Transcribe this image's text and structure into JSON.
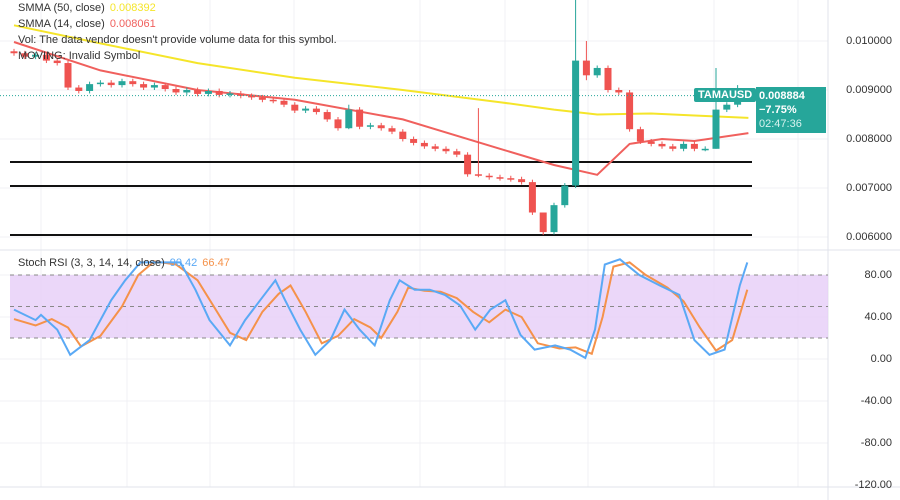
{
  "legend": {
    "smma50_label": "SMMA (50, close)",
    "smma50_value": "0.008392",
    "smma14_label": "SMMA (14, close)",
    "smma14_value": "0.008061",
    "vol_text": "Vol: The data vendor doesn't provide volume data for this symbol.",
    "moving_text": "MOVING: Invalid Symbol",
    "stoch_label": "Stoch RSI (3, 3, 14, 14, close)",
    "stoch_k_value": "90.42",
    "stoch_d_value": "66.47"
  },
  "symbol_tag": "TAMAUSD",
  "last_price": {
    "price": "0.008884",
    "change": "−7.75%",
    "countdown": "02:47:36",
    "value": 0.008884
  },
  "price_axis": [
    "0.010000",
    "0.009000",
    "0.008000",
    "0.007000",
    "0.006000"
  ],
  "stoch_axis": [
    "80.00",
    "40.00",
    "0.00",
    "-40.00",
    "-80.00",
    "-120.00"
  ],
  "colors": {
    "up": "#26a69a",
    "down": "#ef5350",
    "smma50": "#f5e52a",
    "smma14": "#f0605d",
    "stoch_k": "#5aa9f5",
    "stoch_d": "#f5924a",
    "band": "#e6cdf7"
  },
  "chart_data": [
    {
      "type": "candlestick",
      "price_range": [
        0.0058,
        0.0108
      ],
      "close": [
        0.00975,
        0.00968,
        0.00972,
        0.0096,
        0.00955,
        0.00905,
        0.00898,
        0.00912,
        0.00915,
        0.0091,
        0.00918,
        0.00912,
        0.00905,
        0.0091,
        0.00902,
        0.00895,
        0.009,
        0.00892,
        0.00898,
        0.0089,
        0.00893,
        0.00888,
        0.00885,
        0.0088,
        0.00878,
        0.0087,
        0.00858,
        0.00862,
        0.00855,
        0.0084,
        0.00822,
        0.0086,
        0.00825,
        0.00828,
        0.00822,
        0.00815,
        0.008,
        0.00792,
        0.00785,
        0.0078,
        0.00775,
        0.00768,
        0.00728,
        0.00725,
        0.00722,
        0.0072,
        0.00718,
        0.00712,
        0.0065,
        0.0061,
        0.00665,
        0.00705,
        0.0096,
        0.0093,
        0.00945,
        0.009,
        0.00895,
        0.0082,
        0.00795,
        0.0079,
        0.00785,
        0.0078,
        0.0079,
        0.0078,
        0.0078,
        0.0086,
        0.0087,
        0.00888
      ],
      "wicks": {
        "31": [
          0.0087,
          0.0082
        ],
        "43": [
          0.00863,
          0.00722
        ],
        "49": [
          0.0065,
          0.00604
        ],
        "52": [
          0.01085,
          0.007
        ],
        "53": [
          0.01,
          0.0092
        ],
        "65": [
          0.00945,
          0.0078
        ],
        "67": [
          0.0091,
          0.00865
        ]
      },
      "horizontal_levels": [
        0.00753,
        0.00704,
        0.00604
      ],
      "smma50": [
        [
          0,
          0.01032
        ],
        [
          8,
          0.00995
        ],
        [
          17,
          0.00955
        ],
        [
          26,
          0.00925
        ],
        [
          36,
          0.009
        ],
        [
          45,
          0.00875
        ],
        [
          50,
          0.0086
        ],
        [
          54,
          0.0085
        ],
        [
          59,
          0.00852
        ],
        [
          63,
          0.00848
        ],
        [
          68,
          0.00843
        ]
      ],
      "smma14": [
        [
          0,
          0.00998
        ],
        [
          8,
          0.0094
        ],
        [
          17,
          0.009
        ],
        [
          26,
          0.0088
        ],
        [
          36,
          0.0084
        ],
        [
          45,
          0.0078
        ],
        [
          50,
          0.00747
        ],
        [
          54,
          0.00727
        ],
        [
          57,
          0.0079
        ],
        [
          60,
          0.008
        ],
        [
          63,
          0.00796
        ],
        [
          68,
          0.00812
        ]
      ]
    },
    {
      "type": "line",
      "yrange": [
        -120,
        100
      ],
      "band": [
        20,
        80
      ],
      "k": [
        [
          0,
          47
        ],
        [
          2,
          37
        ],
        [
          2.5,
          42
        ],
        [
          4,
          28
        ],
        [
          5.2,
          4
        ],
        [
          7,
          18
        ],
        [
          9,
          56
        ],
        [
          10.3,
          75
        ],
        [
          11.7,
          92
        ],
        [
          13.5,
          92
        ],
        [
          15.4,
          92
        ],
        [
          16.8,
          66
        ],
        [
          18.1,
          37
        ],
        [
          20,
          13
        ],
        [
          21.4,
          37
        ],
        [
          22.8,
          56
        ],
        [
          24.2,
          75
        ],
        [
          25.1,
          56
        ],
        [
          26.5,
          28
        ],
        [
          27.9,
          4
        ],
        [
          29.3,
          18
        ],
        [
          30.6,
          47
        ],
        [
          32,
          28
        ],
        [
          33.4,
          13
        ],
        [
          34.8,
          56
        ],
        [
          35.7,
          75
        ],
        [
          37.1,
          66
        ],
        [
          38.5,
          66
        ],
        [
          39.9,
          61
        ],
        [
          41.3,
          51
        ],
        [
          42.7,
          28
        ],
        [
          44.1,
          47
        ],
        [
          45.5,
          56
        ],
        [
          46.9,
          23
        ],
        [
          48.2,
          9
        ],
        [
          50.1,
          13
        ],
        [
          51.5,
          9
        ],
        [
          52.9,
          1
        ],
        [
          53.8,
          28
        ],
        [
          54.7,
          90
        ],
        [
          56.1,
          95
        ],
        [
          57.9,
          80
        ],
        [
          59.8,
          70
        ],
        [
          61.6,
          61
        ],
        [
          63,
          18
        ],
        [
          64.4,
          4
        ],
        [
          65.8,
          9
        ],
        [
          67.2,
          70
        ],
        [
          67.9,
          92
        ]
      ],
      "d": [
        [
          0,
          38
        ],
        [
          2,
          32
        ],
        [
          3.5,
          38
        ],
        [
          5,
          30
        ],
        [
          6.2,
          12
        ],
        [
          8,
          22
        ],
        [
          10,
          50
        ],
        [
          11.5,
          80
        ],
        [
          13,
          93
        ],
        [
          15,
          90
        ],
        [
          17,
          75
        ],
        [
          18.5,
          50
        ],
        [
          20,
          25
        ],
        [
          21.5,
          18
        ],
        [
          23,
          45
        ],
        [
          24.5,
          62
        ],
        [
          25.6,
          70
        ],
        [
          27,
          45
        ],
        [
          28.5,
          15
        ],
        [
          30,
          22
        ],
        [
          31.5,
          38
        ],
        [
          33,
          30
        ],
        [
          34,
          20
        ],
        [
          35.5,
          45
        ],
        [
          36.5,
          68
        ],
        [
          38,
          65
        ],
        [
          39.5,
          64
        ],
        [
          41,
          58
        ],
        [
          42.5,
          45
        ],
        [
          44,
          35
        ],
        [
          45.5,
          47
        ],
        [
          47,
          40
        ],
        [
          48.5,
          15
        ],
        [
          50.5,
          10
        ],
        [
          52,
          11
        ],
        [
          53.5,
          5
        ],
        [
          54.5,
          40
        ],
        [
          55.5,
          88
        ],
        [
          57,
          92
        ],
        [
          58.5,
          80
        ],
        [
          60.5,
          68
        ],
        [
          62,
          55
        ],
        [
          63.5,
          30
        ],
        [
          65,
          8
        ],
        [
          66.5,
          18
        ],
        [
          67.9,
          66
        ]
      ]
    }
  ]
}
